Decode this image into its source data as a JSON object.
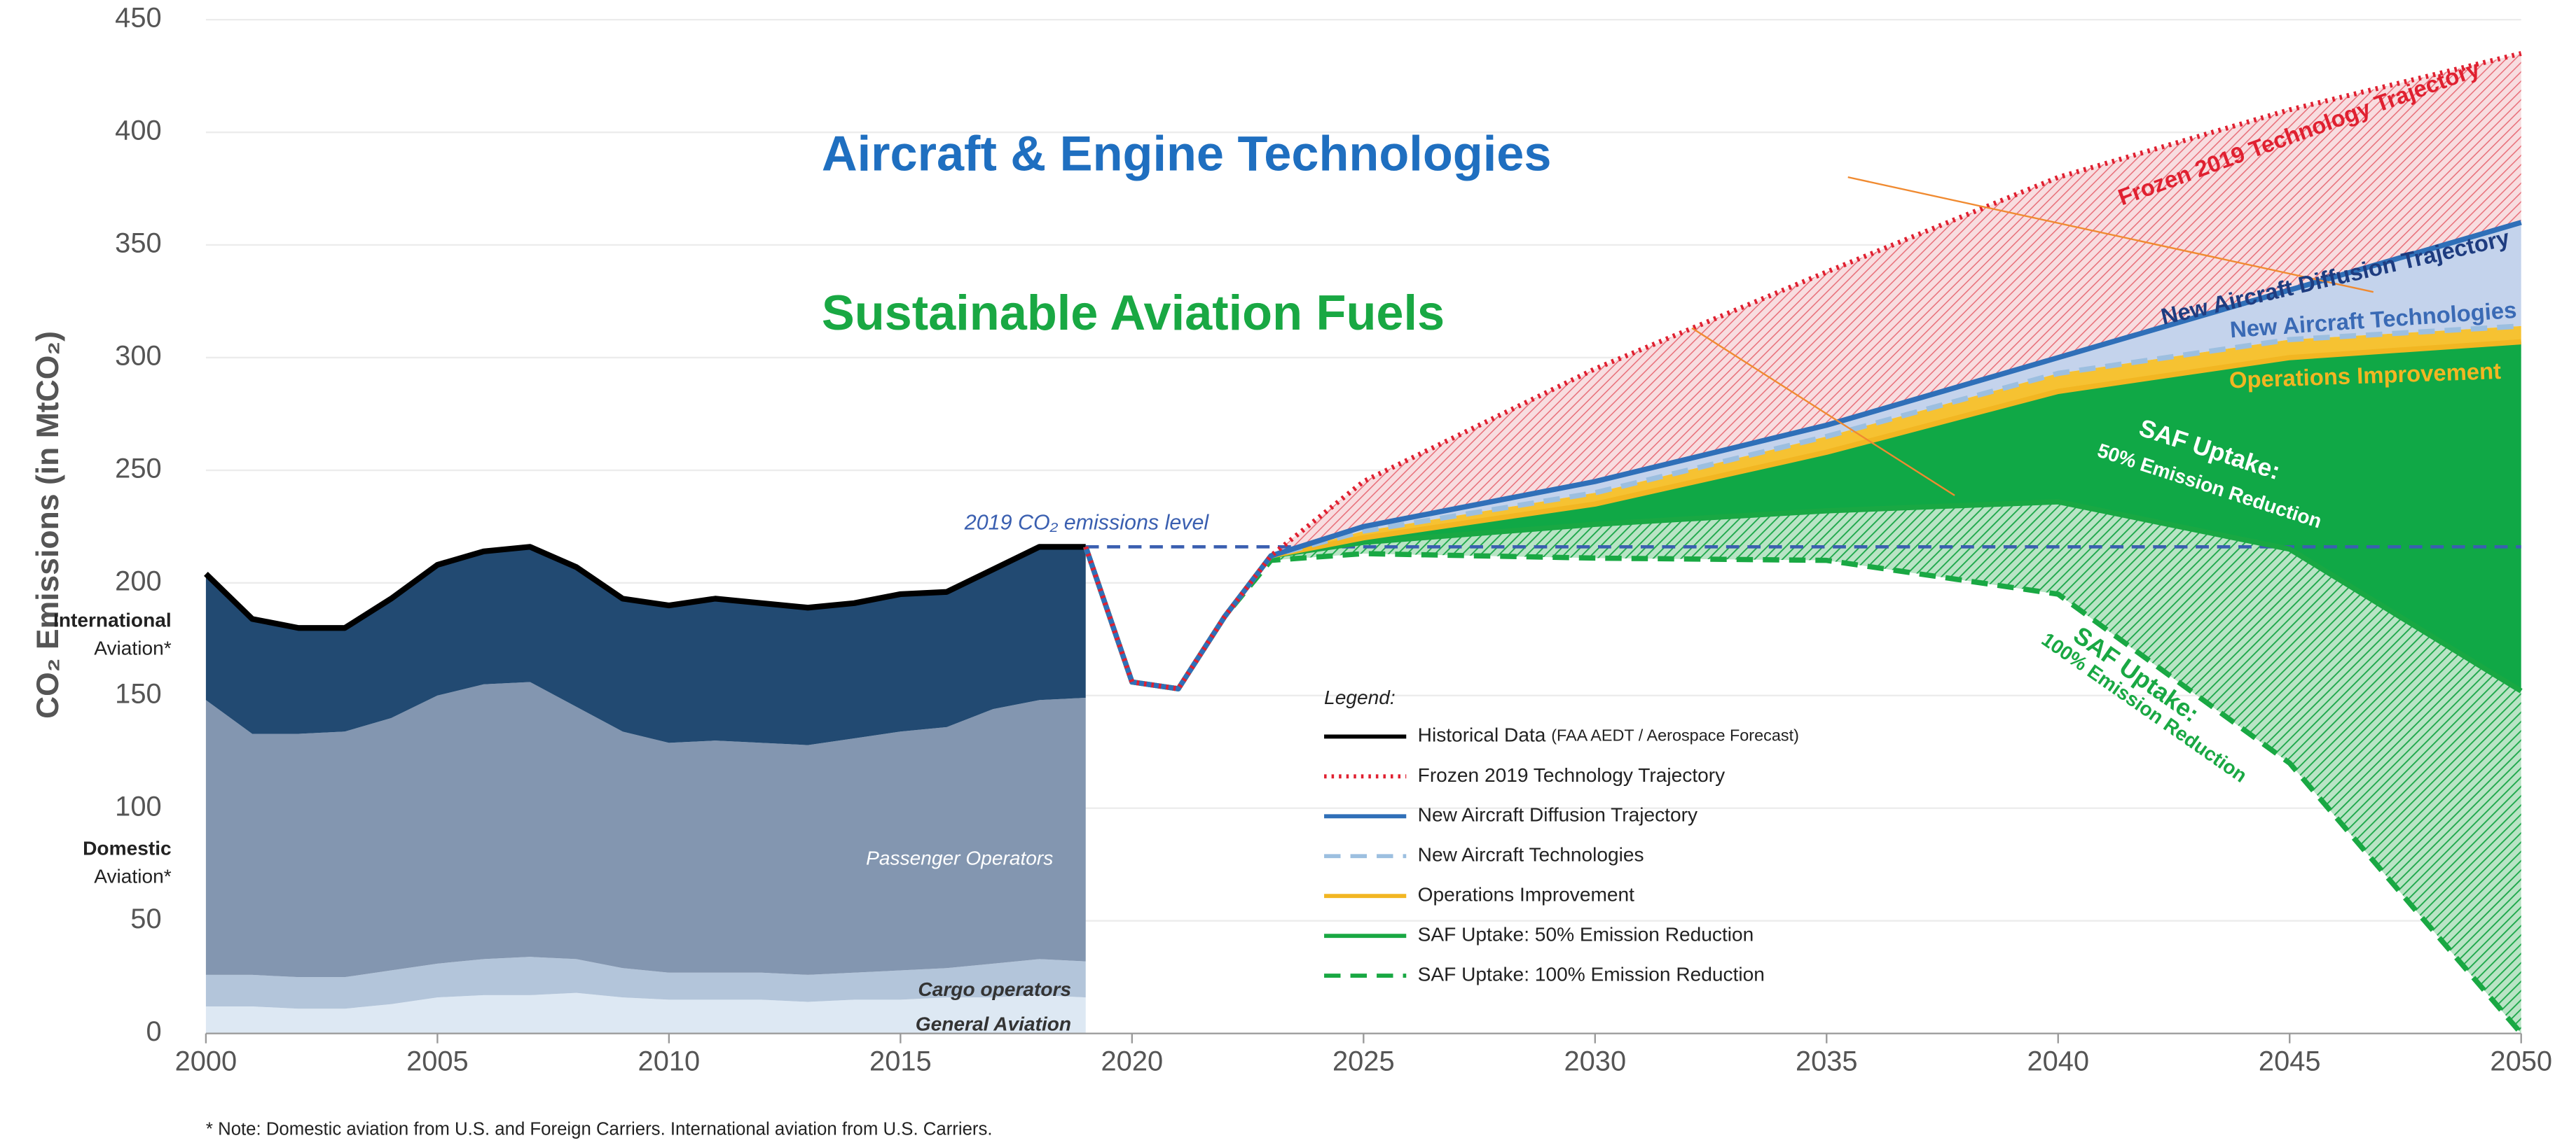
{
  "chart_data": {
    "type": "area",
    "ylabel": "CO₂ Emissions (in MtCO₂)",
    "xlim": [
      2000,
      2050
    ],
    "xticks": [
      2000,
      2005,
      2010,
      2015,
      2020,
      2025,
      2030,
      2035,
      2040,
      2045,
      2050
    ],
    "ylim": [
      0,
      450
    ],
    "yticks": [
      0,
      50,
      100,
      150,
      200,
      250,
      300,
      350,
      400,
      450
    ],
    "grid": true,
    "historical": {
      "name": "Historical Data",
      "source": "(FAA AEDT / Aerospace Forecast)",
      "color": "#000000",
      "x": [
        2000,
        2001,
        2002,
        2003,
        2004,
        2005,
        2006,
        2007,
        2008,
        2009,
        2010,
        2011,
        2012,
        2013,
        2014,
        2015,
        2016,
        2017,
        2018,
        2019
      ],
      "segments": [
        {
          "name": "General Aviation",
          "color": "#dde8f3",
          "values": [
            12,
            12,
            11,
            11,
            13,
            16,
            17,
            17,
            18,
            16,
            15,
            15,
            15,
            14,
            15,
            15,
            16,
            16,
            17,
            16
          ]
        },
        {
          "name": "Cargo operators",
          "color": "#b3c5da",
          "values": [
            14,
            14,
            14,
            14,
            15,
            15,
            16,
            17,
            15,
            13,
            12,
            12,
            12,
            12,
            12,
            13,
            13,
            15,
            16,
            16
          ]
        },
        {
          "name": "Passenger Operators",
          "color": "#8396b0",
          "values": [
            122,
            107,
            108,
            109,
            112,
            119,
            122,
            122,
            112,
            105,
            102,
            103,
            102,
            102,
            104,
            106,
            107,
            113,
            115,
            117
          ]
        },
        {
          "color": "#224a72",
          "values": [
            56,
            51,
            47,
            46,
            53,
            58,
            59,
            60,
            62,
            59,
            61,
            63,
            62,
            61,
            60,
            61,
            60,
            62,
            68,
            67
          ]
        }
      ]
    },
    "x": [
      2019,
      2020,
      2021,
      2022,
      2023,
      2025,
      2030,
      2035,
      2040,
      2045,
      2050
    ],
    "series": [
      {
        "name": "Frozen 2019 Technology Trajectory",
        "color": "#e02030",
        "style": "dotted",
        "fill": "#f6cdd2",
        "hatch": true,
        "values": [
          216,
          156,
          153,
          185,
          212,
          245,
          295,
          338,
          380,
          410,
          435
        ]
      },
      {
        "name": "New Aircraft Diffusion Trajectory",
        "color": "#2f6fb8",
        "style": "solid",
        "fill": "#c4d3ec",
        "values": [
          216,
          156,
          153,
          185,
          212,
          225,
          245,
          270,
          300,
          330,
          360
        ]
      },
      {
        "name": "New Aircraft Technologies",
        "color": "#9cbfe0",
        "style": "dashed",
        "fill": "#f6c232",
        "values": [
          216,
          156,
          153,
          185,
          212,
          223,
          240,
          265,
          293,
          308,
          314
        ]
      },
      {
        "name": "Operations Improvement",
        "color": "#f2b622",
        "style": "solid",
        "fill": "#10a846",
        "values": [
          216,
          156,
          153,
          185,
          212,
          220,
          235,
          258,
          285,
          300,
          307
        ]
      },
      {
        "name": "SAF Uptake: 50% Emission Reduction",
        "color": "#19a843",
        "style": "solid",
        "fill": "#2aae55",
        "hatch": true,
        "values": [
          216,
          156,
          153,
          185,
          212,
          218,
          226,
          232,
          236,
          215,
          152
        ]
      },
      {
        "name": "SAF Uptake: 100% Emission Reduction",
        "color": "#19a843",
        "style": "dashed",
        "values": [
          216,
          156,
          153,
          185,
          210,
          213,
          211,
          210,
          195,
          120,
          0
        ]
      }
    ],
    "reference": {
      "label": "2019 CO₂ emissions level",
      "value": 216,
      "color": "#3a5fb0"
    },
    "legend_title": "Legend:",
    "annotations": {
      "international": [
        "International",
        "Aviation*"
      ],
      "domestic": [
        "Domestic",
        "Aviation*"
      ],
      "headline_1": "Aircraft & Engine Technologies",
      "headline_2": "Sustainable Aviation Fuels",
      "saf50": [
        "SAF Uptake:",
        "50% Emission Reduction"
      ],
      "saf100": [
        "SAF Uptake:",
        "100% Emission Reduction"
      ],
      "note": "* Note: Domestic aviation from U.S. and Foreign Carriers. International aviation from U.S. Carriers."
    }
  }
}
